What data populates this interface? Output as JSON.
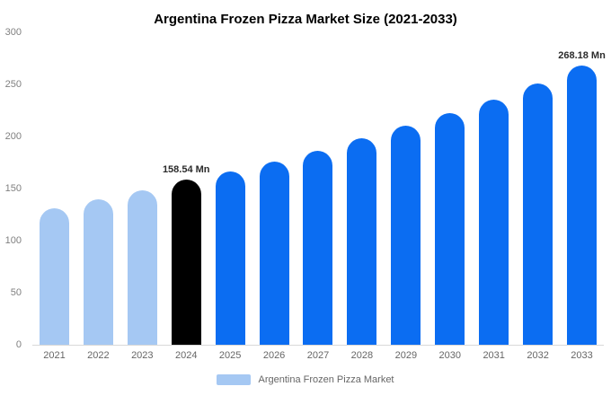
{
  "chart_data": {
    "type": "bar",
    "title": "Argentina Frozen Pizza Market Size (2021-2033)",
    "categories": [
      "2021",
      "2022",
      "2023",
      "2024",
      "2025",
      "2026",
      "2027",
      "2028",
      "2029",
      "2030",
      "2031",
      "2032",
      "2033"
    ],
    "values": [
      131,
      139.5,
      148,
      158.54,
      166.5,
      176,
      186.5,
      198,
      210,
      222.5,
      235.5,
      250.5,
      268.18
    ],
    "colors": [
      "#a5c8f3",
      "#a5c8f3",
      "#a5c8f3",
      "#000000",
      "#0b6df2",
      "#0b6df2",
      "#0b6df2",
      "#0b6df2",
      "#0b6df2",
      "#0b6df2",
      "#0b6df2",
      "#0b6df2",
      "#0b6df2"
    ],
    "ylim": [
      0,
      300
    ],
    "yticks": [
      0,
      50,
      100,
      150,
      200,
      250,
      300
    ],
    "grid": false,
    "xlabel": "",
    "ylabel": "",
    "annotations": [
      {
        "category": "2024",
        "text": "158.54 Mn"
      },
      {
        "category": "2033",
        "text": "268.18 Mn"
      }
    ],
    "legend_position": "bottom",
    "legend": [
      {
        "label": "Argentina Frozen Pizza Market",
        "color": "#a5c8f3"
      }
    ]
  }
}
